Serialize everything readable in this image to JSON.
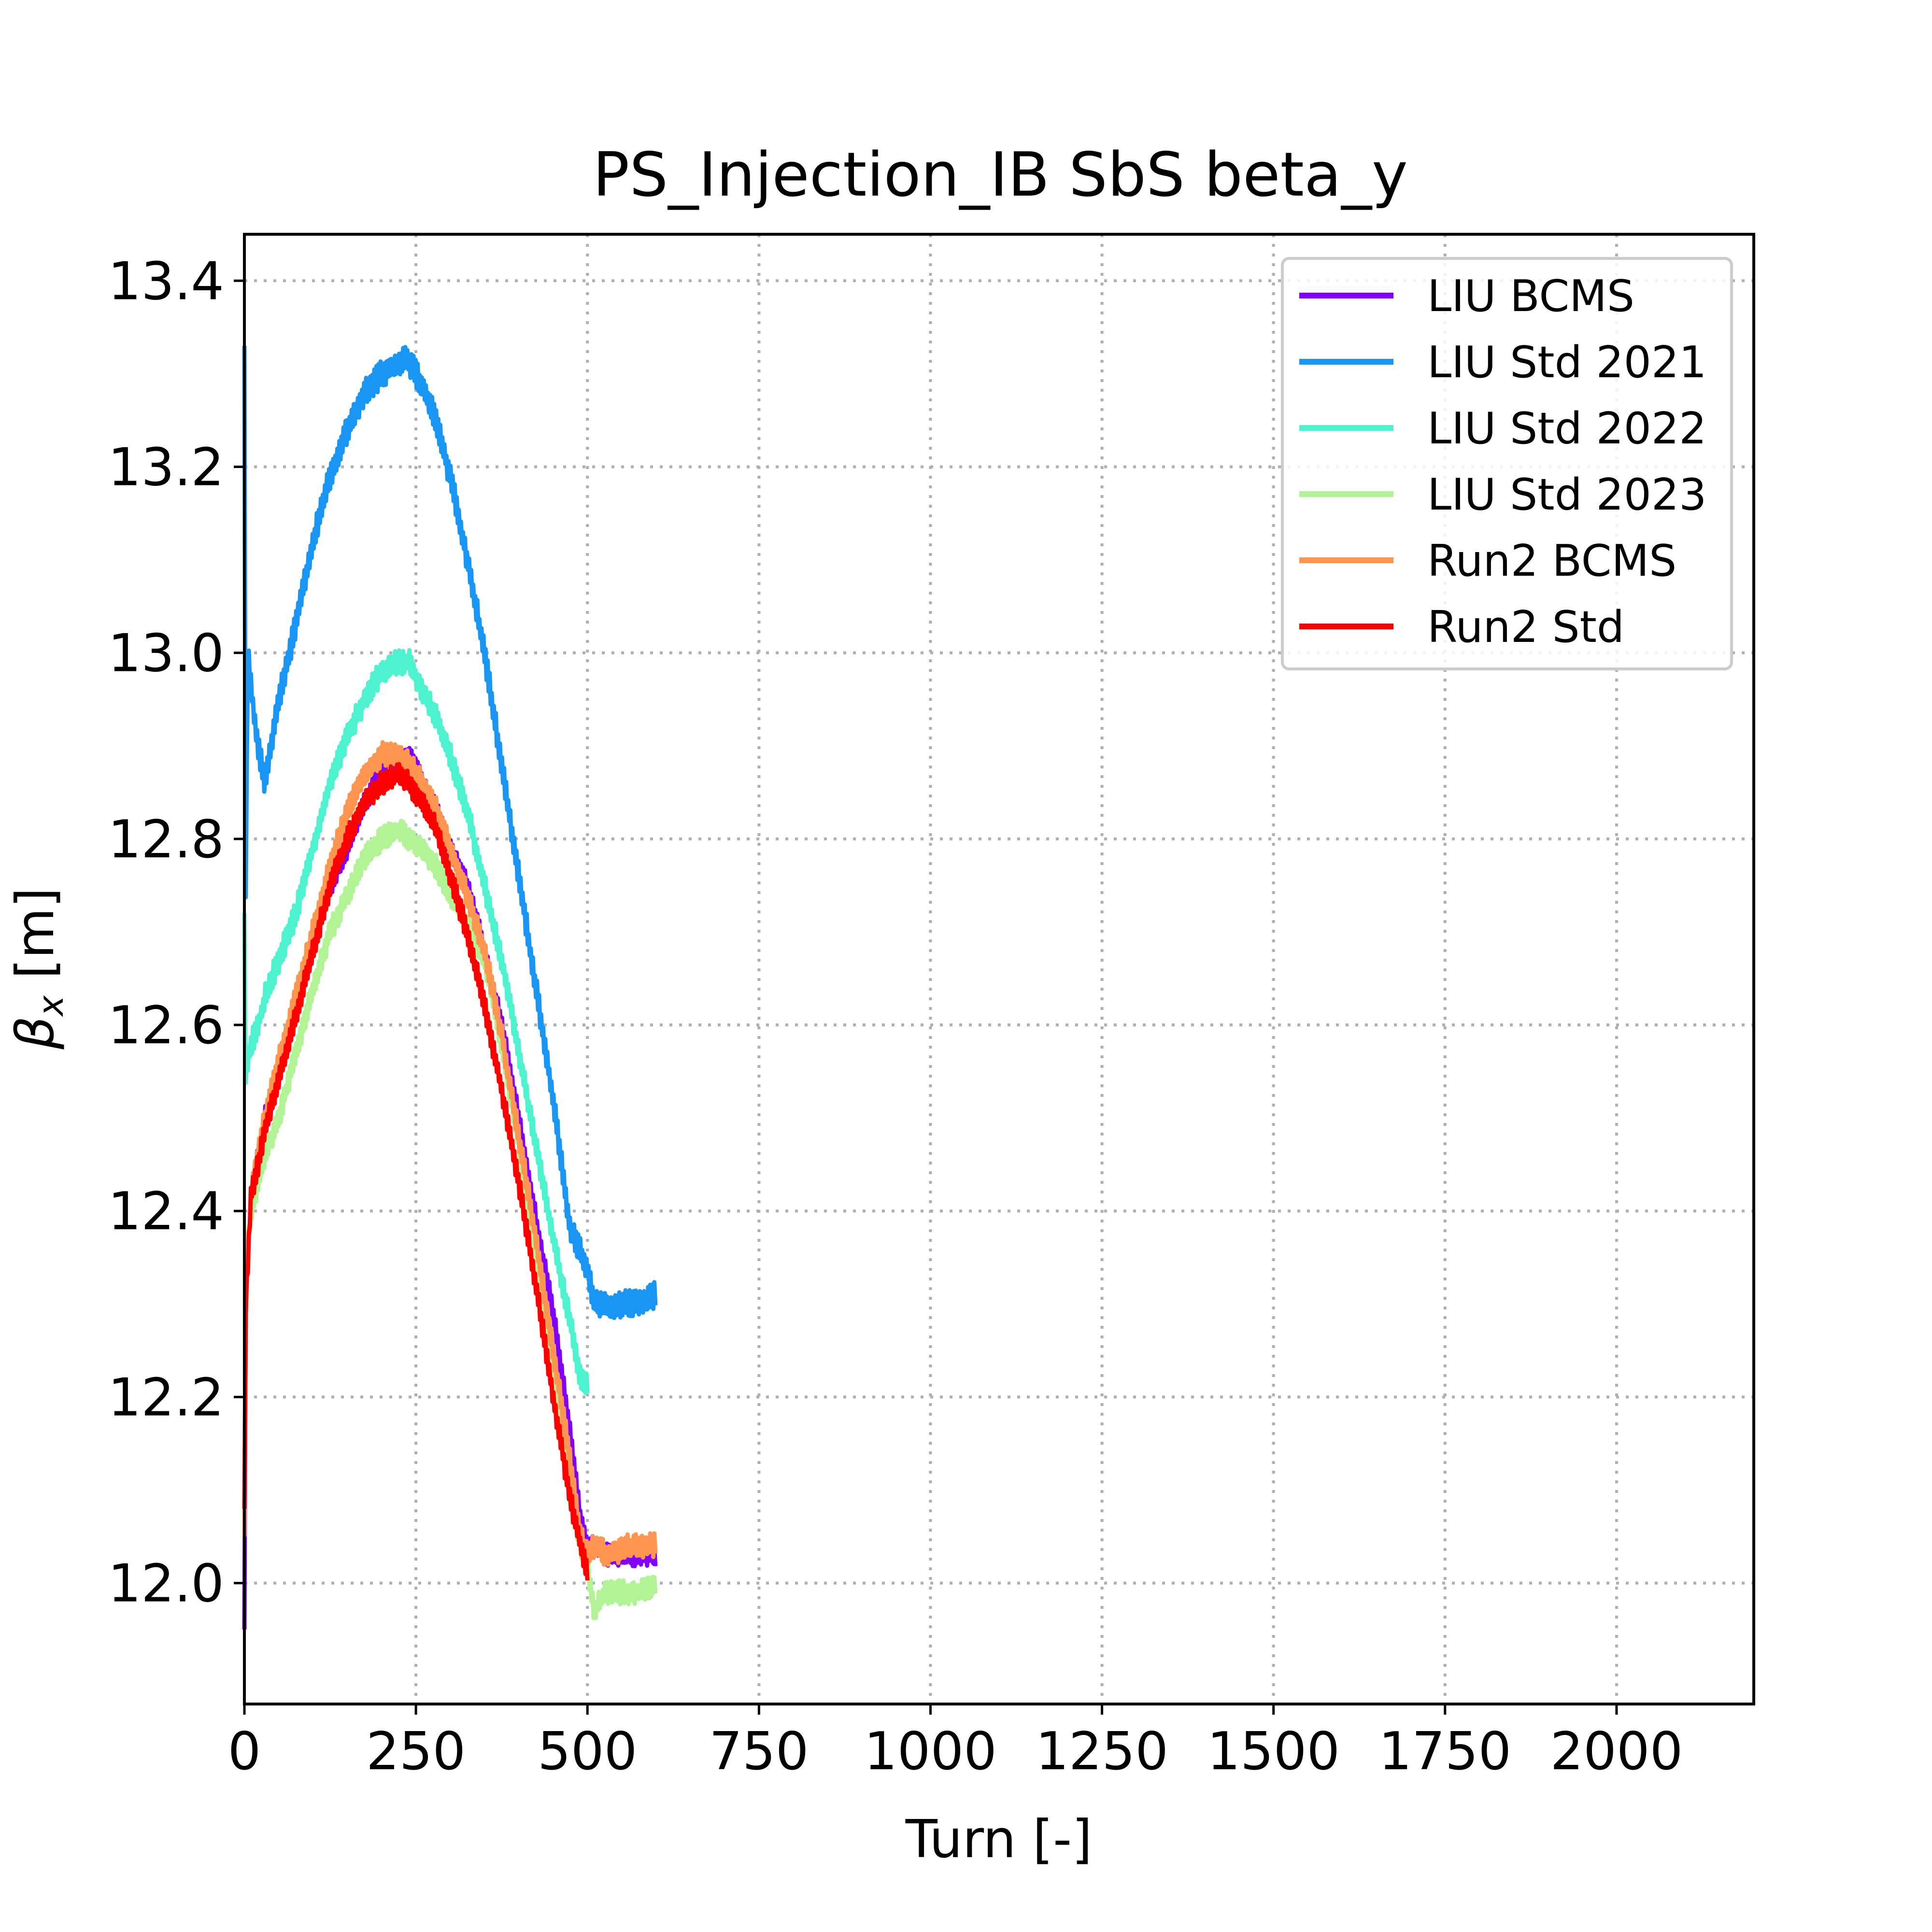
{
  "chart_data": {
    "type": "line",
    "title": "PS_Injection_IB SbS beta_y",
    "xlabel": "Turn [-]",
    "ylabel_symbol": "β",
    "ylabel_subscript": "x",
    "ylabel_unit": " [m]",
    "xlim": [
      0,
      2200
    ],
    "ylim": [
      11.87,
      13.45
    ],
    "xticks": [
      0,
      250,
      500,
      750,
      1000,
      1250,
      1500,
      1750,
      2000
    ],
    "yticks": [
      12.0,
      12.2,
      12.4,
      12.6,
      12.8,
      13.0,
      13.2,
      13.4
    ],
    "ytick_labels": [
      "12.0",
      "12.2",
      "12.4",
      "12.6",
      "12.8",
      "13.0",
      "13.2",
      "13.4"
    ],
    "grid": true,
    "legend_position": "top-right",
    "series": [
      {
        "name": "LIU BCMS",
        "color": "#8000ff",
        "noise": 0.012,
        "x": [
          0,
          2,
          10,
          20,
          30,
          50,
          75,
          100,
          125,
          150,
          175,
          200,
          225,
          240,
          260,
          280,
          300,
          325,
          350,
          375,
          400,
          425,
          450,
          475,
          490,
          500,
          510,
          530,
          560,
          600
        ],
        "y": [
          11.95,
          12.32,
          12.42,
          12.46,
          12.5,
          12.55,
          12.62,
          12.69,
          12.75,
          12.79,
          12.84,
          12.87,
          12.88,
          12.89,
          12.86,
          12.83,
          12.79,
          12.75,
          12.68,
          12.6,
          12.5,
          12.39,
          12.29,
          12.16,
          12.07,
          12.04,
          12.04,
          12.03,
          12.03,
          12.03
        ]
      },
      {
        "name": "LIU Std 2021",
        "color": "#1996f3",
        "noise": 0.015,
        "x": [
          0,
          2,
          5,
          10,
          20,
          30,
          50,
          75,
          100,
          125,
          150,
          175,
          200,
          225,
          235,
          250,
          275,
          300,
          325,
          350,
          375,
          400,
          425,
          450,
          475,
          500,
          510,
          525,
          550,
          575,
          600
        ],
        "y": [
          13.33,
          12.75,
          13.0,
          12.96,
          12.9,
          12.86,
          12.95,
          13.03,
          13.12,
          13.19,
          13.24,
          13.28,
          13.3,
          13.31,
          13.32,
          13.3,
          13.26,
          13.19,
          13.1,
          13.0,
          12.88,
          12.76,
          12.64,
          12.52,
          12.38,
          12.34,
          12.3,
          12.3,
          12.3,
          12.3,
          12.31
        ]
      },
      {
        "name": "LIU Std 2022",
        "color": "#4df3ce",
        "noise": 0.014,
        "x": [
          0,
          2,
          10,
          20,
          30,
          50,
          75,
          100,
          125,
          150,
          175,
          200,
          225,
          240,
          260,
          280,
          300,
          325,
          350,
          375,
          400,
          425,
          450,
          475,
          490,
          500
        ],
        "y": [
          12.72,
          12.55,
          12.58,
          12.6,
          12.63,
          12.67,
          12.72,
          12.79,
          12.86,
          12.91,
          12.95,
          12.98,
          12.99,
          12.99,
          12.96,
          12.93,
          12.89,
          12.83,
          12.75,
          12.67,
          12.57,
          12.47,
          12.37,
          12.28,
          12.22,
          12.21
        ]
      },
      {
        "name": "LIU Std 2023",
        "color": "#b2f396",
        "noise": 0.013,
        "x": [
          0,
          2,
          10,
          20,
          30,
          50,
          75,
          100,
          125,
          150,
          175,
          200,
          225,
          240,
          260,
          280,
          300,
          325,
          350,
          375,
          400,
          425,
          450,
          475,
          490,
          500,
          510,
          525,
          550,
          575,
          600
        ],
        "y": [
          12.05,
          12.35,
          12.4,
          12.43,
          12.46,
          12.5,
          12.57,
          12.64,
          12.7,
          12.74,
          12.78,
          12.8,
          12.81,
          12.8,
          12.79,
          12.77,
          12.74,
          12.71,
          12.67,
          12.58,
          12.47,
          12.35,
          12.22,
          12.1,
          12.04,
          12.02,
          11.97,
          11.99,
          11.99,
          11.99,
          12.0
        ]
      },
      {
        "name": "Run2 BCMS",
        "color": "#ff964f",
        "noise": 0.014,
        "x": [
          0,
          2,
          10,
          20,
          30,
          50,
          75,
          100,
          125,
          150,
          175,
          200,
          225,
          240,
          260,
          280,
          300,
          325,
          350,
          375,
          400,
          425,
          450,
          475,
          490,
          500,
          510,
          530,
          560,
          600
        ],
        "y": [
          12.05,
          12.3,
          12.42,
          12.46,
          12.5,
          12.56,
          12.63,
          12.7,
          12.77,
          12.83,
          12.87,
          12.89,
          12.89,
          12.88,
          12.86,
          12.83,
          12.79,
          12.74,
          12.68,
          12.59,
          12.48,
          12.37,
          12.25,
          12.13,
          12.05,
          12.03,
          12.04,
          12.03,
          12.04,
          12.04
        ]
      },
      {
        "name": "Run2 Std",
        "color": "#ff0000",
        "noise": 0.013,
        "x": [
          0,
          2,
          10,
          20,
          30,
          50,
          75,
          100,
          125,
          150,
          175,
          200,
          225,
          240,
          260,
          280,
          300,
          325,
          350,
          375,
          400,
          425,
          450,
          475,
          490,
          500
        ],
        "y": [
          12.08,
          12.3,
          12.42,
          12.45,
          12.49,
          12.54,
          12.61,
          12.68,
          12.75,
          12.8,
          12.84,
          12.86,
          12.87,
          12.86,
          12.84,
          12.81,
          12.76,
          12.7,
          12.62,
          12.53,
          12.43,
          12.32,
          12.2,
          12.09,
          12.04,
          12.01
        ]
      }
    ]
  }
}
